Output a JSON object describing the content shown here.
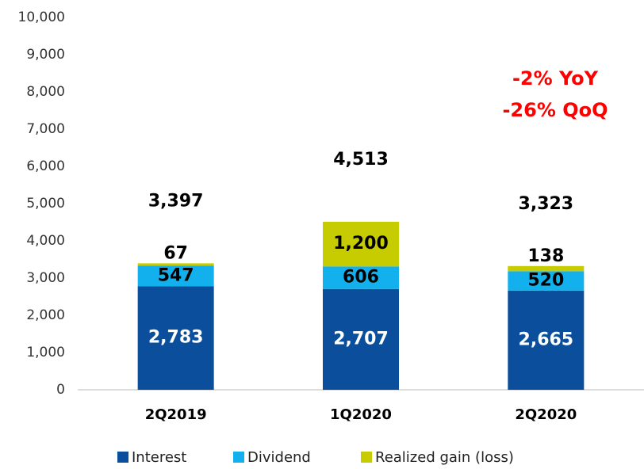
{
  "chart_data": {
    "type": "stacked_bar",
    "categories": [
      "2Q2019",
      "1Q2020",
      "2Q2020"
    ],
    "series": [
      {
        "name": "Interest",
        "color": "#0b4f9c",
        "values": [
          2783,
          2707,
          2665
        ],
        "value_labels": [
          "2,783",
          "2,707",
          "2,665"
        ]
      },
      {
        "name": "Dividend",
        "color": "#12b1ee",
        "values": [
          547,
          606,
          520
        ]
      },
      {
        "name": "Realized gain (loss)",
        "color": "#c6cc00",
        "values": [
          67,
          1200,
          138
        ],
        "value_labels": [
          "67",
          "1,200",
          "138"
        ]
      }
    ],
    "totals": [
      3397,
      4513,
      3323
    ],
    "total_labels": [
      "3,397",
      "4,513",
      "3,323"
    ],
    "annotations": [
      "-2% YoY",
      "-26% QoQ"
    ],
    "ylim": [
      0,
      10000
    ],
    "yticks": [
      0,
      {
        "value": 1000,
        "label": "1,000"
      },
      {
        "value": 2000,
        "label": "2,000"
      },
      {
        "value": 3000,
        "label": "3,000"
      },
      {
        "value": 4000,
        "label": "4,000"
      },
      {
        "value": 5000,
        "label": "5,000"
      },
      {
        "value": 6000,
        "label": "6,000"
      },
      {
        "value": 7000,
        "label": "7,000"
      },
      {
        "value": 8000,
        "label": "8,000"
      },
      {
        "value": 9000,
        "label": "9,000"
      },
      {
        "value": 10000,
        "label": "10,000"
      }
    ],
    "legend": "bottom"
  }
}
